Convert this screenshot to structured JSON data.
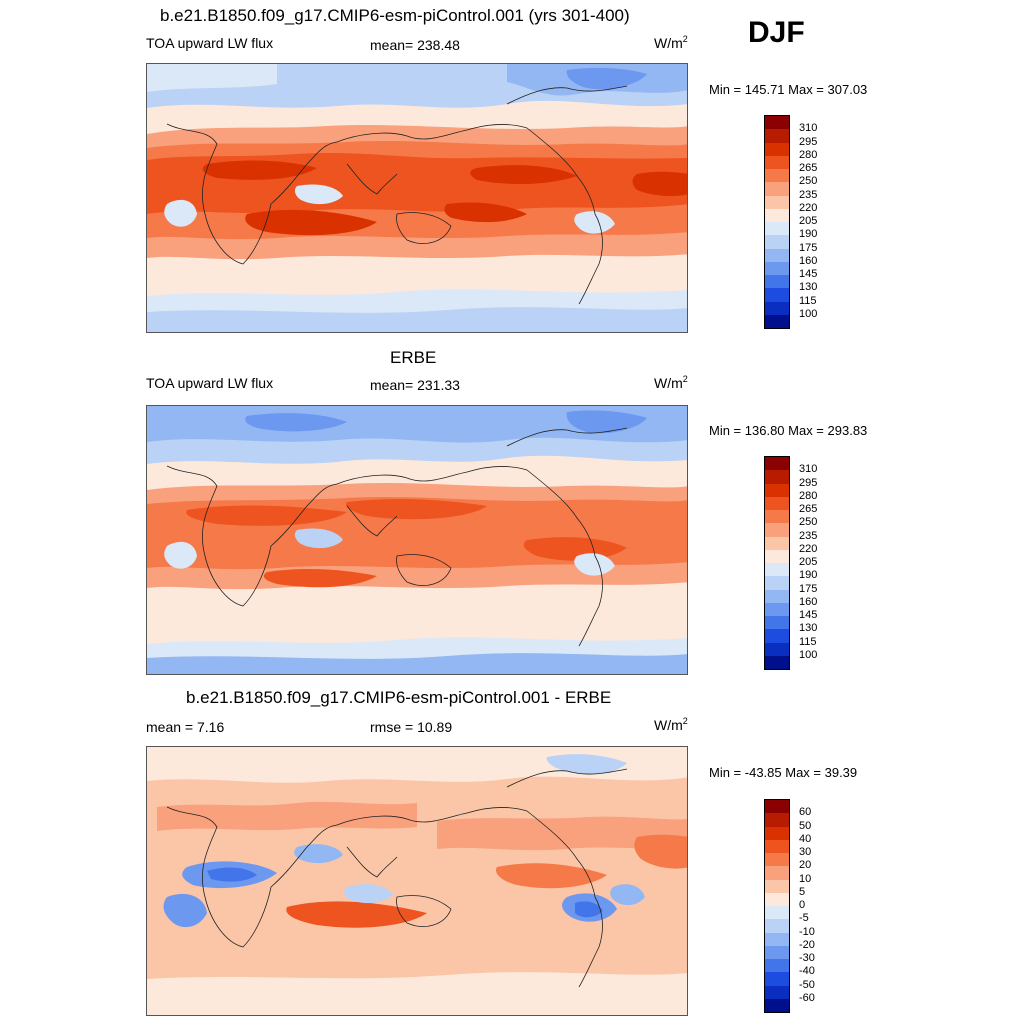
{
  "season_label": "DJF",
  "panels": [
    {
      "title": "b.e21.B1850.f09_g17.CMIP6-esm-piControl.001 (yrs 301-400)",
      "left_label": "TOA upward LW flux",
      "center_label": "mean= 238.48",
      "units_base": "W/m",
      "units_exp": "2",
      "minmax": "Min = 145.71 Max = 307.03"
    },
    {
      "title": "ERBE",
      "left_label": "TOA upward LW flux",
      "center_label": "mean= 231.33",
      "units_base": "W/m",
      "units_exp": "2",
      "minmax": "Min = 136.80 Max = 293.83"
    },
    {
      "title": "b.e21.B1850.f09_g17.CMIP6-esm-piControl.001 - ERBE",
      "left_label": "mean =   7.16",
      "center_label": "rmse =  10.89",
      "units_base": "W/m",
      "units_exp": "2",
      "minmax": "Min = -43.85 Max =  39.39"
    }
  ],
  "colorbars": {
    "abs": {
      "ticks": [
        "310",
        "295",
        "280",
        "265",
        "250",
        "235",
        "220",
        "205",
        "190",
        "175",
        "160",
        "145",
        "130",
        "115",
        "100"
      ],
      "colors": [
        "#8b0000",
        "#b71c00",
        "#d93200",
        "#ee5420",
        "#f6794a",
        "#f9a07d",
        "#fbc6a7",
        "#fde9dc",
        "#dbe8f8",
        "#b9d2f5",
        "#93b7f3",
        "#6c98ef",
        "#4275ea",
        "#1d4de0",
        "#0a2ec0",
        "#000f8c"
      ]
    },
    "diff": {
      "ticks": [
        "60",
        "50",
        "40",
        "30",
        "20",
        "10",
        "5",
        "0",
        "-5",
        "-10",
        "-20",
        "-30",
        "-40",
        "-50",
        "-60"
      ],
      "colors": [
        "#8b0000",
        "#b71c00",
        "#d93200",
        "#ee5420",
        "#f6794a",
        "#f9a07d",
        "#fbc6a7",
        "#fde9dc",
        "#dbe8f8",
        "#b9d2f5",
        "#93b7f3",
        "#6c98ef",
        "#4275ea",
        "#1d4de0",
        "#0a2ec0",
        "#000f8c"
      ]
    }
  }
}
